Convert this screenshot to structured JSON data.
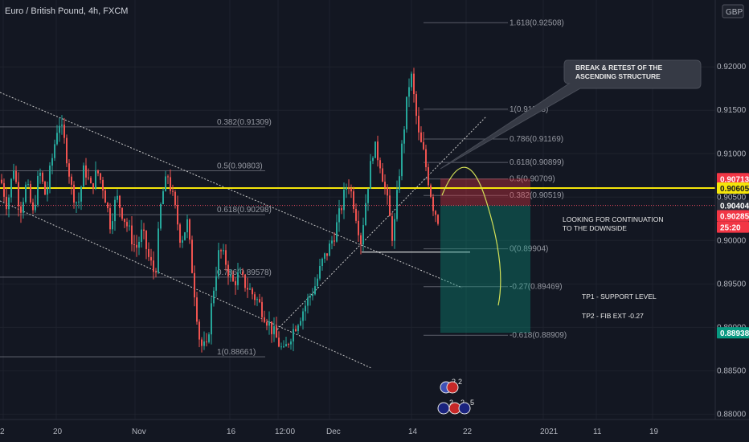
{
  "chart_data": {
    "type": "candlestick",
    "title": "Euro / British Pound, 4h, FXCM",
    "currency_badge": "GBP",
    "y_range": [
      0.8768,
      0.9277
    ],
    "y_ticks": [
      0.92,
      0.915,
      0.91,
      0.905,
      0.9,
      0.895,
      0.89,
      0.885,
      0.88
    ],
    "y_tick_labels": [
      "0.92000",
      "0.91500",
      "0.91000",
      "0.90500",
      "0.90000",
      "0.89500",
      "0.89000",
      "0.88500",
      "0.88000"
    ],
    "x_ticks": [
      "2",
      "20",
      "Nov",
      "16",
      "12:00",
      "Dec",
      "14",
      "22",
      "2021",
      "11",
      "19"
    ],
    "price_path": [
      [
        0,
        0.907
      ],
      [
        8,
        0.904
      ],
      [
        16,
        0.9085
      ],
      [
        24,
        0.9035
      ],
      [
        32,
        0.9065
      ],
      [
        40,
        0.903
      ],
      [
        48,
        0.908
      ],
      [
        56,
        0.905
      ],
      [
        64,
        0.9095
      ],
      [
        72,
        0.914
      ],
      [
        80,
        0.911
      ],
      [
        88,
        0.906
      ],
      [
        96,
        0.904
      ],
      [
        104,
        0.9085
      ],
      [
        112,
        0.906
      ],
      [
        120,
        0.908
      ],
      [
        128,
        0.906
      ],
      [
        136,
        0.902
      ],
      [
        144,
        0.905
      ],
      [
        152,
        0.903
      ],
      [
        160,
        0.901
      ],
      [
        168,
        0.899
      ],
      [
        176,
        0.901
      ],
      [
        184,
        0.898
      ],
      [
        192,
        0.896
      ],
      [
        200,
        0.905
      ],
      [
        208,
        0.9075
      ],
      [
        216,
        0.904
      ],
      [
        224,
        0.9
      ],
      [
        232,
        0.902
      ],
      [
        240,
        0.895
      ],
      [
        248,
        0.888
      ],
      [
        256,
        0.8875
      ],
      [
        264,
        0.894
      ],
      [
        272,
        0.899
      ],
      [
        280,
        0.8975
      ],
      [
        288,
        0.895
      ],
      [
        296,
        0.896
      ],
      [
        304,
        0.895
      ],
      [
        312,
        0.894
      ],
      [
        320,
        0.893
      ],
      [
        328,
        0.8915
      ],
      [
        336,
        0.89
      ],
      [
        344,
        0.8885
      ],
      [
        352,
        0.887
      ],
      [
        360,
        0.889
      ],
      [
        368,
        0.8905
      ],
      [
        376,
        0.892
      ],
      [
        384,
        0.8935
      ],
      [
        392,
        0.895
      ],
      [
        400,
        0.8975
      ],
      [
        408,
        0.899
      ],
      [
        416,
        0.901
      ],
      [
        424,
        0.904
      ],
      [
        432,
        0.907
      ],
      [
        440,
        0.904
      ],
      [
        448,
        0.9
      ],
      [
        456,
        0.906
      ],
      [
        464,
        0.911
      ],
      [
        472,
        0.909
      ],
      [
        480,
        0.905
      ],
      [
        488,
        0.9
      ],
      [
        496,
        0.908
      ],
      [
        504,
        0.915
      ],
      [
        510,
        0.9195
      ],
      [
        516,
        0.915
      ],
      [
        520,
        0.912
      ],
      [
        526,
        0.91
      ],
      [
        532,
        0.907
      ],
      [
        538,
        0.904
      ],
      [
        544,
        0.9025
      ]
    ],
    "horizontal_levels": [
      {
        "label": "0.90605",
        "value": 0.90605,
        "color": "#f5e50a"
      },
      {
        "label": "0.90404",
        "value": 0.90404,
        "color": "#e84a5f"
      }
    ],
    "fib_left": [
      {
        "label": "0.382(0.91309)",
        "value": 0.91309
      },
      {
        "label": "0.5(0.90803)",
        "value": 0.90803
      },
      {
        "label": "0.618(0.90298)",
        "value": 0.90298
      },
      {
        "label": "0.786(0.89578)",
        "value": 0.89578
      },
      {
        "label": "1(0.88661)",
        "value": 0.88661
      }
    ],
    "fib_right": [
      {
        "label": "1.618(0.92508)",
        "value": 0.92508
      },
      {
        "label": "1(0.91513)",
        "value": 0.91513
      },
      {
        "label": "0.786(0.91169)",
        "value": 0.91169
      },
      {
        "label": "0.618(0.90899)",
        "value": 0.90899
      },
      {
        "label": "0.5(0.90709)",
        "value": 0.90709
      },
      {
        "label": "0.382(0.90519)",
        "value": 0.90519
      },
      {
        "label": "0(0.89904)",
        "value": 0.89904
      },
      {
        "label": "-0.27(0.89469)",
        "value": 0.89469
      },
      {
        "label": "-0.618(0.88909)",
        "value": 0.88909
      }
    ],
    "axis_tags": [
      {
        "label": "0.90713",
        "value": 0.90713,
        "bg": "#f23645",
        "fg": "#ffffff"
      },
      {
        "label": "0.90605",
        "value": 0.90605,
        "bg": "#f5e50a",
        "fg": "#131722"
      },
      {
        "label": "0.90404",
        "value": 0.90404,
        "bg": "#2a2e39",
        "fg": "#ffffff"
      },
      {
        "label": "0.90285",
        "value": 0.90285,
        "bg": "#f23645",
        "fg": "#ffffff"
      },
      {
        "label": "25:20",
        "value": 0.90155,
        "bg": "#f23645",
        "fg": "#ffffff"
      },
      {
        "label": "0.88938",
        "value": 0.88938,
        "bg": "#089981",
        "fg": "#ffffff"
      }
    ],
    "trade": {
      "entry": 0.90404,
      "stop": 0.90713,
      "target": 0.88938
    },
    "annotations": {
      "callout_line1": "BREAK & RETEST OF THE",
      "callout_line2": "ASCENDING STRUCTURE",
      "note_line1": "LOOKING FOR CONTINUATION",
      "note_line2": "TO THE DOWNSIDE",
      "tp1": "TP1 - SUPPORT LEVEL",
      "tp2": "TP2 - FIB EXT -0.27"
    },
    "event_badges": [
      "2",
      "2",
      "2",
      "2",
      "5"
    ],
    "colors": {
      "up": "#26a69a",
      "down": "#ef5350",
      "background": "#131722"
    }
  }
}
